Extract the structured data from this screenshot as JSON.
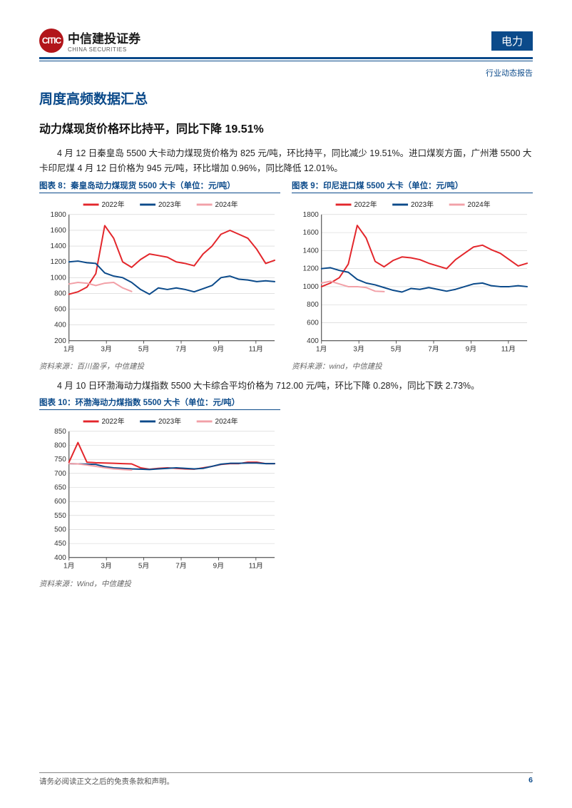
{
  "header": {
    "logo_cn": "中信建投证券",
    "logo_en": "CHINA SECURITIES",
    "logo_glyph": "CITIC",
    "sector_badge": "电力",
    "doc_type": "行业动态报告"
  },
  "section": {
    "h1": "周度高频数据汇总",
    "h2": "动力煤现货价格环比持平，同比下降 19.51%",
    "para1": "4 月 12 日秦皇岛 5500 大卡动力煤现货价格为 825 元/吨，环比持平，同比减少 19.51%。进口煤炭方面，广州港 5500 大卡印尼煤 4 月 12 日价格为 945 元/吨，环比增加 0.96%，同比降低 12.01%。",
    "para2": "4 月 10 日环渤海动力煤指数 5500 大卡综合平均价格为 712.00 元/吨，环比下降 0.28%，同比下跌 2.73%。"
  },
  "charts": {
    "shared": {
      "months": [
        "1月",
        "3月",
        "5月",
        "7月",
        "9月",
        "11月"
      ],
      "legend": [
        "2022年",
        "2023年",
        "2024年"
      ],
      "colors": {
        "2022": "#e3262b",
        "2023": "#0b4a8a",
        "2024": "#f2a0a7"
      },
      "axis_color": "#333333",
      "grid_color": "#cfcfcf",
      "bg_color": "#ffffff",
      "label_fontsize": 10,
      "legend_fontsize": 10,
      "line_width": 2
    },
    "chart8": {
      "caption": "图表 8：秦皇岛动力煤现货 5500 大卡（单位：元/吨）",
      "source": "资料来源：百川盈孚，中信建投",
      "ylim": [
        200,
        1800
      ],
      "ytick_step": 200,
      "series": {
        "2022": [
          790,
          820,
          880,
          1050,
          1660,
          1500,
          1200,
          1130,
          1230,
          1300,
          1280,
          1260,
          1200,
          1180,
          1150,
          1300,
          1400,
          1550,
          1600,
          1550,
          1500,
          1360,
          1180,
          1220
        ],
        "2023": [
          1200,
          1210,
          1190,
          1180,
          1060,
          1020,
          1000,
          940,
          850,
          790,
          870,
          850,
          870,
          850,
          820,
          860,
          900,
          1000,
          1020,
          980,
          970,
          950,
          960,
          950
        ],
        "2024": [
          920,
          940,
          930,
          900,
          930,
          940,
          870,
          825
        ]
      }
    },
    "chart9": {
      "caption": "图表 9：印尼进口煤 5500 大卡（单位：元/吨）",
      "source": "资料来源：wind，中信建投",
      "ylim": [
        400,
        1800
      ],
      "ytick_step": 200,
      "series": {
        "2022": [
          1000,
          1040,
          1100,
          1250,
          1680,
          1540,
          1280,
          1220,
          1290,
          1330,
          1320,
          1300,
          1260,
          1230,
          1200,
          1300,
          1370,
          1440,
          1460,
          1410,
          1370,
          1300,
          1230,
          1260
        ],
        "2023": [
          1200,
          1210,
          1180,
          1160,
          1080,
          1040,
          1020,
          990,
          960,
          940,
          980,
          970,
          990,
          970,
          950,
          970,
          1000,
          1030,
          1040,
          1010,
          1000,
          1000,
          1010,
          1000
        ],
        "2024": [
          1040,
          1060,
          1030,
          1000,
          1000,
          990,
          950,
          945
        ]
      }
    },
    "chart10": {
      "caption": "图表 10：环渤海动力煤指数 5500 大卡（单位：元/吨）",
      "source": "资料来源：Wind，中信建投",
      "ylim": [
        400,
        850
      ],
      "ytick_step": 50,
      "series": {
        "2022": [
          740,
          810,
          740,
          738,
          737,
          736,
          735,
          734,
          720,
          715,
          718,
          720,
          718,
          716,
          715,
          720,
          725,
          732,
          735,
          735,
          740,
          740,
          735,
          735
        ],
        "2023": [
          735,
          734,
          733,
          732,
          724,
          720,
          718,
          716,
          715,
          714,
          716,
          718,
          720,
          718,
          716,
          718,
          725,
          733,
          736,
          736,
          737,
          737,
          735,
          735
        ],
        "2024": [
          735,
          734,
          730,
          725,
          720,
          716,
          714,
          712
        ]
      }
    }
  },
  "footer": {
    "disclaimer": "请务必阅读正文之后的免责条款和声明。",
    "page_number": "6"
  }
}
